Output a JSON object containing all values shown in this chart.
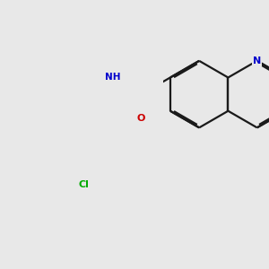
{
  "bg_color": "#e8e8e8",
  "bond_color": "#1a1a1a",
  "N_color": "#0000cc",
  "O_color": "#cc0000",
  "Cl_color": "#00aa00",
  "lw": 1.6,
  "dbo": 0.018,
  "bl": 0.38,
  "figsize": [
    3.0,
    3.0
  ],
  "dpi": 100,
  "xlim": [
    -0.1,
    1.1
  ],
  "ylim": [
    -0.05,
    1.05
  ]
}
